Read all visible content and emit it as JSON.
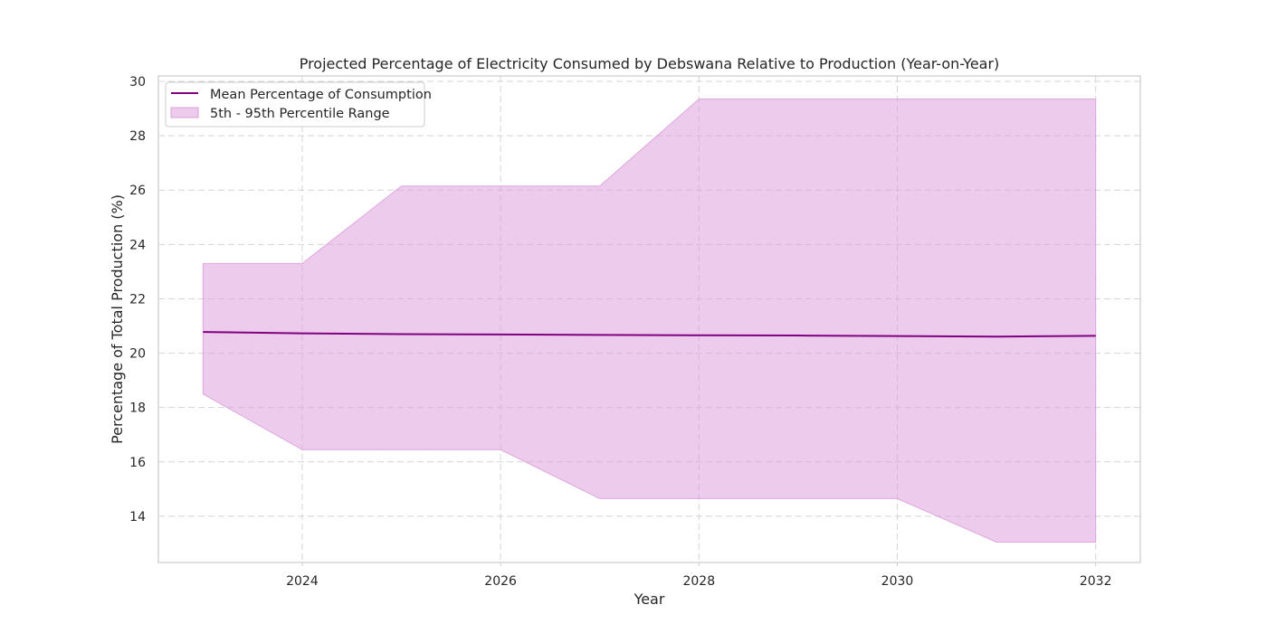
{
  "chart_data": {
    "type": "area",
    "title": "Projected Percentage of Electricity Consumed by Debswana Relative to Production (Year-on-Year)",
    "xlabel": "Year",
    "ylabel": "Percentage of Total Production (%)",
    "xlim": [
      2022.55,
      2032.45
    ],
    "ylim": [
      12.3,
      30.2
    ],
    "grid": true,
    "legend_position": "top-left",
    "x": [
      2023,
      2024,
      2025,
      2026,
      2027,
      2028,
      2029,
      2030,
      2031,
      2032
    ],
    "xticks": [
      2024,
      2026,
      2028,
      2030,
      2032
    ],
    "xtick_labels": [
      "2024",
      "2026",
      "2028",
      "2030",
      "2032"
    ],
    "yticks": [
      14,
      16,
      18,
      20,
      22,
      24,
      26,
      28,
      30
    ],
    "ytick_labels": [
      "14",
      "16",
      "18",
      "20",
      "22",
      "24",
      "26",
      "28",
      "30"
    ],
    "series": [
      {
        "name": "Mean Percentage of Consumption",
        "kind": "line",
        "color": "#800080",
        "values": [
          20.78,
          20.73,
          20.7,
          20.69,
          20.67,
          20.66,
          20.65,
          20.63,
          20.61,
          20.64
        ]
      },
      {
        "name": "5th - 95th Percentile Range",
        "kind": "band",
        "color": "#dda0dd",
        "lower": [
          18.5,
          16.45,
          16.45,
          16.45,
          14.65,
          14.65,
          14.65,
          14.65,
          13.05,
          13.05
        ],
        "upper": [
          23.3,
          23.3,
          26.15,
          26.15,
          26.15,
          29.35,
          29.35,
          29.35,
          29.35,
          29.35
        ]
      }
    ]
  }
}
